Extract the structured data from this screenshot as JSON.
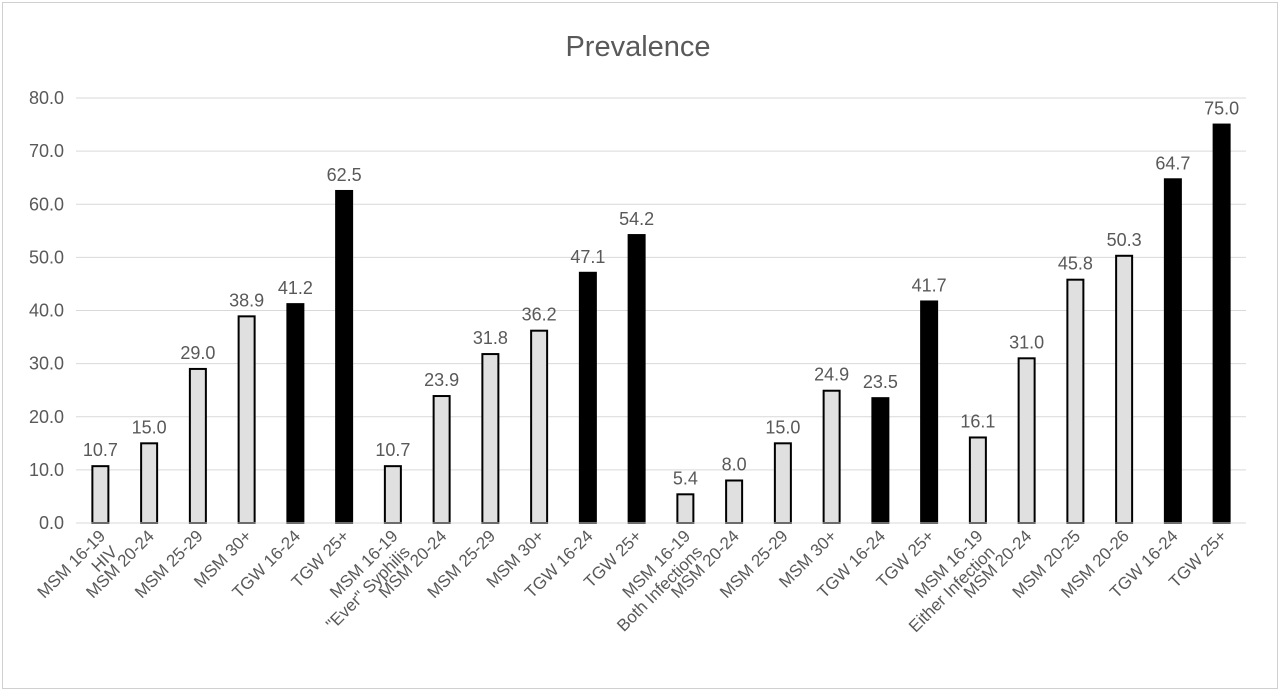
{
  "chart_data": {
    "type": "bar",
    "title": "Prevalence",
    "xlabel": "",
    "ylabel": "",
    "ylim": [
      0,
      80
    ],
    "yticks": [
      "0.0",
      "10.0",
      "20.0",
      "30.0",
      "40.0",
      "50.0",
      "60.0",
      "70.0",
      "80.0"
    ],
    "grid": true,
    "legend": "none",
    "colors": {
      "msm_fill": "#e0e0e0",
      "tgw_fill": "#000000",
      "bar_stroke": "#000000",
      "text": "#595959",
      "grid": "#d9d9d9"
    },
    "groups": [
      {
        "name": "HIV",
        "bars": [
          {
            "label": "MSM 16-19",
            "value": 10.7,
            "value_label": "10.7",
            "pop": "MSM"
          },
          {
            "label": "MSM 20-24",
            "value": 15.0,
            "value_label": "15.0",
            "pop": "MSM"
          },
          {
            "label": "MSM 25-29",
            "value": 29.0,
            "value_label": "29.0",
            "pop": "MSM"
          },
          {
            "label": "MSM 30+",
            "value": 38.9,
            "value_label": "38.9",
            "pop": "MSM"
          },
          {
            "label": "TGW 16-24",
            "value": 41.2,
            "value_label": "41.2",
            "pop": "TGW"
          },
          {
            "label": "TGW 25+",
            "value": 62.5,
            "value_label": "62.5",
            "pop": "TGW"
          }
        ]
      },
      {
        "name": "\"Ever\" Syphilis",
        "bars": [
          {
            "label": "MSM 16-19",
            "value": 10.7,
            "value_label": "10.7",
            "pop": "MSM"
          },
          {
            "label": "MSM 20-24",
            "value": 23.9,
            "value_label": "23.9",
            "pop": "MSM"
          },
          {
            "label": "MSM 25-29",
            "value": 31.8,
            "value_label": "31.8",
            "pop": "MSM"
          },
          {
            "label": "MSM 30+",
            "value": 36.2,
            "value_label": "36.2",
            "pop": "MSM"
          },
          {
            "label": "TGW 16-24",
            "value": 47.1,
            "value_label": "47.1",
            "pop": "TGW"
          },
          {
            "label": "TGW 25+",
            "value": 54.2,
            "value_label": "54.2",
            "pop": "TGW"
          }
        ]
      },
      {
        "name": "Both Infections",
        "bars": [
          {
            "label": "MSM 16-19",
            "value": 5.4,
            "value_label": "5.4",
            "pop": "MSM"
          },
          {
            "label": "MSM 20-24",
            "value": 8.0,
            "value_label": "8.0",
            "pop": "MSM"
          },
          {
            "label": "MSM 25-29",
            "value": 15.0,
            "value_label": "15.0",
            "pop": "MSM"
          },
          {
            "label": "MSM 30+",
            "value": 24.9,
            "value_label": "24.9",
            "pop": "MSM"
          },
          {
            "label": "TGW 16-24",
            "value": 23.5,
            "value_label": "23.5",
            "pop": "TGW"
          },
          {
            "label": "TGW 25+",
            "value": 41.7,
            "value_label": "41.7",
            "pop": "TGW"
          }
        ]
      },
      {
        "name": "Either Infection",
        "bars": [
          {
            "label": "MSM 16-19",
            "value": 16.1,
            "value_label": "16.1",
            "pop": "MSM"
          },
          {
            "label": "MSM 20-24",
            "value": 31.0,
            "value_label": "31.0",
            "pop": "MSM"
          },
          {
            "label": "MSM 20-25",
            "value": 45.8,
            "value_label": "45.8",
            "pop": "MSM"
          },
          {
            "label": "MSM 20-26",
            "value": 50.3,
            "value_label": "50.3",
            "pop": "MSM"
          },
          {
            "label": "TGW 16-24",
            "value": 64.7,
            "value_label": "64.7",
            "pop": "TGW"
          },
          {
            "label": "TGW 25+",
            "value": 75.0,
            "value_label": "75.0",
            "pop": "TGW"
          }
        ]
      }
    ]
  }
}
